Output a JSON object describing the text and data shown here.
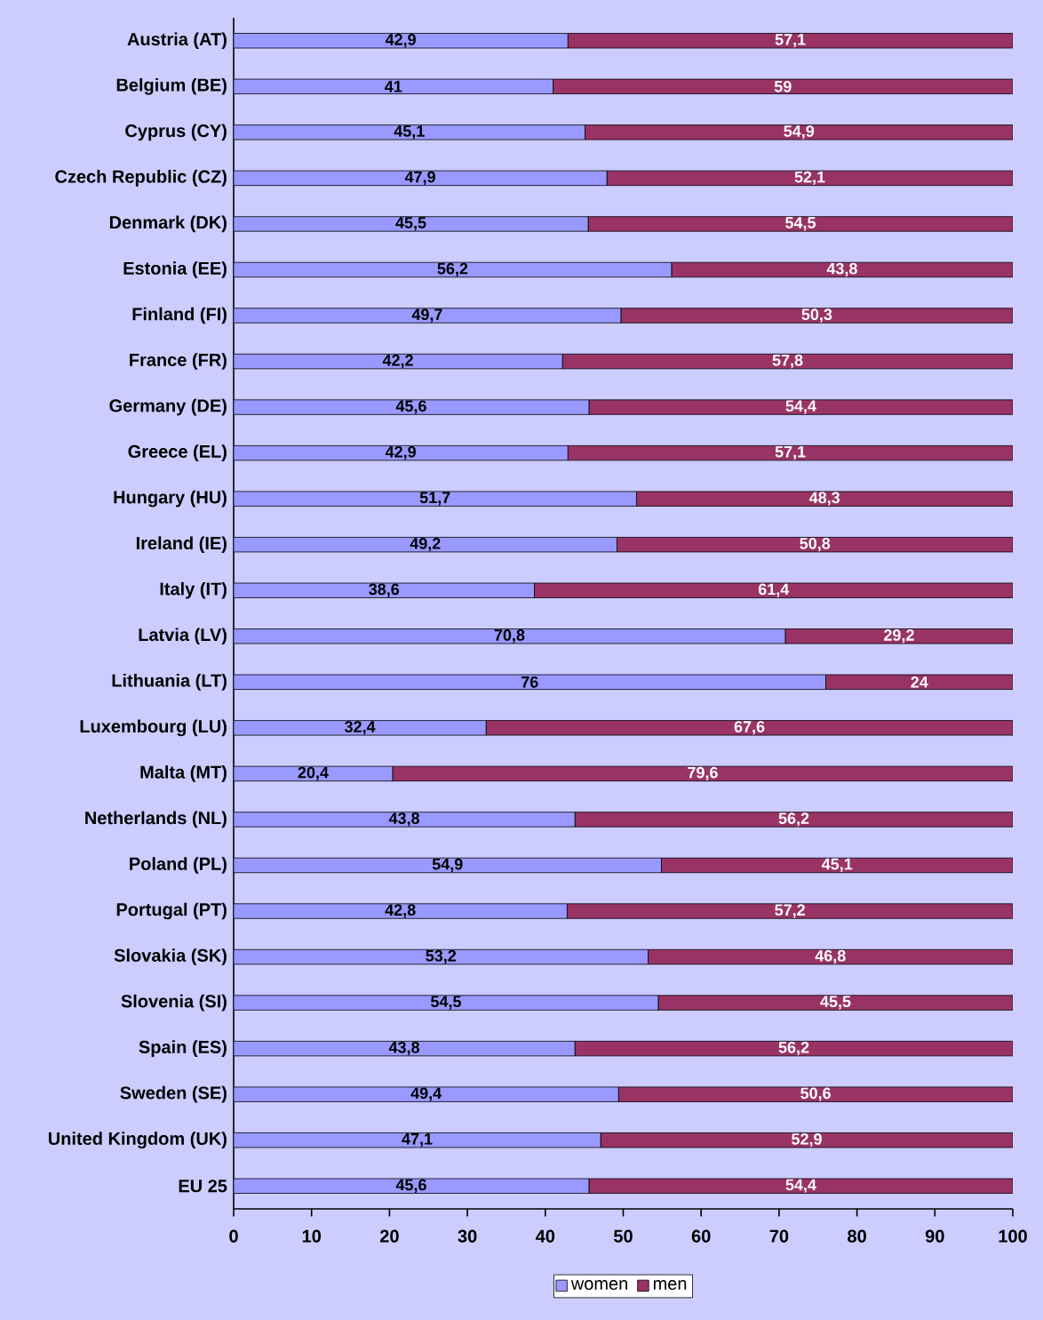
{
  "chart_data": {
    "type": "bar",
    "orientation": "horizontal",
    "stacked": true,
    "categories": [
      "Austria (AT)",
      "Belgium (BE)",
      "Cyprus (CY)",
      "Czech Republic (CZ)",
      "Denmark (DK)",
      "Estonia (EE)",
      "Finland (FI)",
      "France (FR)",
      "Germany (DE)",
      "Greece (EL)",
      "Hungary (HU)",
      "Ireland (IE)",
      "Italy (IT)",
      "Latvia (LV)",
      "Lithuania (LT)",
      "Luxembourg (LU)",
      "Malta (MT)",
      "Netherlands (NL)",
      "Poland (PL)",
      "Portugal (PT)",
      "Slovakia (SK)",
      "Slovenia (SI)",
      "Spain (ES)",
      "Sweden (SE)",
      "United Kingdom (UK)",
      "EU 25"
    ],
    "series": [
      {
        "name": "women",
        "color": "#9999ff",
        "values": [
          42.9,
          41,
          45.1,
          47.9,
          45.5,
          56.2,
          49.7,
          42.2,
          45.6,
          42.9,
          51.7,
          49.2,
          38.6,
          70.8,
          76,
          32.4,
          20.4,
          43.8,
          54.9,
          42.8,
          53.2,
          54.5,
          43.8,
          49.4,
          47.1,
          45.6
        ],
        "value_labels": [
          "42,9",
          "41",
          "45,1",
          "47,9",
          "45,5",
          "56,2",
          "49,7",
          "42,2",
          "45,6",
          "42,9",
          "51,7",
          "49,2",
          "38,6",
          "70,8",
          "76",
          "32,4",
          "20,4",
          "43,8",
          "54,9",
          "42,8",
          "53,2",
          "54,5",
          "43,8",
          "49,4",
          "47,1",
          "45,6"
        ]
      },
      {
        "name": "men",
        "color": "#993366",
        "values": [
          57.1,
          59,
          54.9,
          52.1,
          54.5,
          43.8,
          50.3,
          57.8,
          54.4,
          57.1,
          48.3,
          50.8,
          61.4,
          29.2,
          24,
          67.6,
          79.6,
          56.2,
          45.1,
          57.2,
          46.8,
          45.5,
          56.2,
          50.6,
          52.9,
          54.4
        ],
        "value_labels": [
          "57,1",
          "59",
          "54,9",
          "52,1",
          "54,5",
          "43,8",
          "50,3",
          "57,8",
          "54,4",
          "57,1",
          "48,3",
          "50,8",
          "61,4",
          "29,2",
          "24",
          "67,6",
          "79,6",
          "56,2",
          "45,1",
          "57,2",
          "46,8",
          "45,5",
          "56,2",
          "50,6",
          "52,9",
          "54,4"
        ]
      }
    ],
    "xlim": [
      0,
      100
    ],
    "xticks": [
      0,
      10,
      20,
      30,
      40,
      50,
      60,
      70,
      80,
      90,
      100
    ],
    "grid": false,
    "legend": "bottom"
  }
}
